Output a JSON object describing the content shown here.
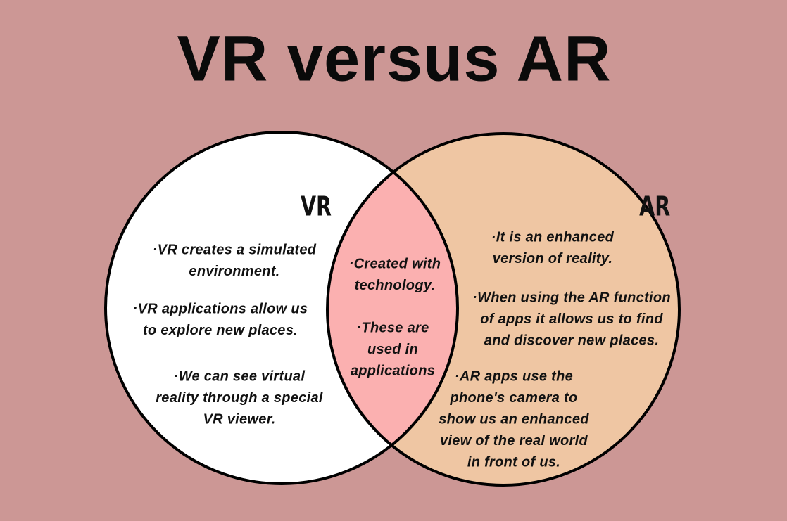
{
  "title": "VR versus AR",
  "vr": {
    "label": "VR",
    "items": [
      [
        "·VR creates a simulated",
        "environment."
      ],
      [
        "·VR applications allow us",
        "to explore new places."
      ],
      [
        "·We can see virtual",
        "reality through a special",
        "VR viewer."
      ]
    ]
  },
  "both": {
    "items": [
      [
        "·Created with",
        "technology."
      ],
      [
        "·These are",
        "used in",
        "applications"
      ]
    ]
  },
  "ar": {
    "label": "AR",
    "items": [
      [
        "·It is an enhanced",
        "version of reality."
      ],
      [
        "·When using the AR function",
        "of apps it allows us to find",
        "and discover new places."
      ],
      [
        "·AR apps use the",
        "phone's camera to",
        "show us an enhanced",
        "view of the real world",
        "in front of us."
      ]
    ]
  }
}
